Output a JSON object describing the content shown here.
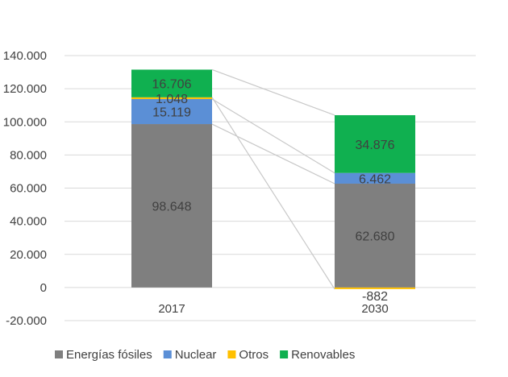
{
  "chart_data": {
    "type": "bar",
    "stacked": true,
    "title": "",
    "xlabel": "",
    "ylabel": "",
    "categories": [
      "2017",
      "2030"
    ],
    "ylim": [
      -20000,
      140000
    ],
    "yticks": [
      -20000,
      0,
      20000,
      40000,
      60000,
      80000,
      100000,
      120000,
      140000
    ],
    "ytick_labels": [
      "-20.000",
      "0",
      "20.000",
      "40.000",
      "60.000",
      "80.000",
      "100.000",
      "120.000",
      "140.000"
    ],
    "grid": true,
    "legend_position": "bottom",
    "series": [
      {
        "name": "Energías fósiles",
        "color": "#7f7f7f",
        "values": [
          98648,
          62680
        ],
        "labels": [
          "98.648",
          "62.680"
        ]
      },
      {
        "name": "Nuclear",
        "color": "#5b8fd6",
        "values": [
          15119,
          6462
        ],
        "labels": [
          "15.119",
          "6.462"
        ]
      },
      {
        "name": "Otros",
        "color": "#ffc000",
        "values": [
          1048,
          -882
        ],
        "labels": [
          "1.048",
          "-882"
        ]
      },
      {
        "name": "Renovables",
        "color": "#10b050",
        "values": [
          16706,
          34876
        ],
        "labels": [
          "16.706",
          "34.876"
        ]
      }
    ],
    "series_lines": true
  }
}
